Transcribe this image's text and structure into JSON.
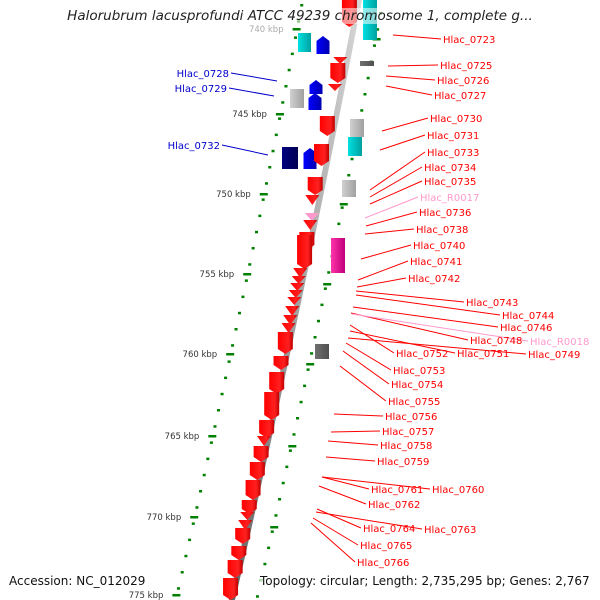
{
  "title": "Halorubrum lacusprofundi ATCC 49239 chromosome 1, complete g...",
  "accession_label": "Accession: NC_012029",
  "topology_label": "Topology: circular; Length: 2,735,295 bp; Genes: 2,767",
  "colors": {
    "forward_gene": "#ff0000",
    "reverse_gene": "#0000ff",
    "rna_gene": "#ff99cc",
    "tick": "#008000",
    "backbone": "#808080"
  },
  "ticks": [
    {
      "label": "740 kbp",
      "kbp": 740
    },
    {
      "label": "745 kbp",
      "kbp": 745
    },
    {
      "label": "750 kbp",
      "kbp": 750
    },
    {
      "label": "755 kbp",
      "kbp": 755
    },
    {
      "label": "760 kbp",
      "kbp": 760
    },
    {
      "label": "765 kbp",
      "kbp": 765
    },
    {
      "label": "770 kbp",
      "kbp": 770
    },
    {
      "label": "775 kbp",
      "kbp": 775
    }
  ],
  "left_labels": [
    {
      "name": "Hlac_0728",
      "color": "#0000cc"
    },
    {
      "name": "Hlac_0729",
      "color": "#0000cc"
    },
    {
      "name": "Hlac_0732",
      "color": "#0000cc"
    }
  ],
  "right_labels": [
    {
      "name": "Hlac_0723",
      "color": "#ff0000"
    },
    {
      "name": "Hlac_0725",
      "color": "#ff0000"
    },
    {
      "name": "Hlac_0726",
      "color": "#ff0000"
    },
    {
      "name": "Hlac_0727",
      "color": "#ff0000"
    },
    {
      "name": "Hlac_0730",
      "color": "#ff0000"
    },
    {
      "name": "Hlac_0731",
      "color": "#ff0000"
    },
    {
      "name": "Hlac_0733",
      "color": "#ff0000"
    },
    {
      "name": "Hlac_0734",
      "color": "#ff0000"
    },
    {
      "name": "Hlac_0735",
      "color": "#ff0000"
    },
    {
      "name": "Hlac_R0017",
      "color": "#ff99cc"
    },
    {
      "name": "Hlac_0736",
      "color": "#ff0000"
    },
    {
      "name": "Hlac_0738",
      "color": "#ff0000"
    },
    {
      "name": "Hlac_0740",
      "color": "#ff0000"
    },
    {
      "name": "Hlac_0741",
      "color": "#ff0000"
    },
    {
      "name": "Hlac_0742",
      "color": "#ff0000"
    },
    {
      "name": "Hlac_0743",
      "color": "#ff0000"
    },
    {
      "name": "Hlac_0744",
      "color": "#ff0000"
    },
    {
      "name": "Hlac_0746",
      "color": "#ff0000"
    },
    {
      "name": "Hlac_0748",
      "color": "#ff0000"
    },
    {
      "name": "Hlac_R0018",
      "color": "#ff99cc"
    },
    {
      "name": "Hlac_0752",
      "color": "#ff0000"
    },
    {
      "name": "Hlac_0751",
      "color": "#ff0000"
    },
    {
      "name": "Hlac_0749",
      "color": "#ff0000"
    },
    {
      "name": "Hlac_0753",
      "color": "#ff0000"
    },
    {
      "name": "Hlac_0754",
      "color": "#ff0000"
    },
    {
      "name": "Hlac_0755",
      "color": "#ff0000"
    },
    {
      "name": "Hlac_0756",
      "color": "#ff0000"
    },
    {
      "name": "Hlac_0757",
      "color": "#ff0000"
    },
    {
      "name": "Hlac_0758",
      "color": "#ff0000"
    },
    {
      "name": "Hlac_0759",
      "color": "#ff0000"
    },
    {
      "name": "Hlac_0761",
      "color": "#ff0000"
    },
    {
      "name": "Hlac_0760",
      "color": "#ff0000"
    },
    {
      "name": "Hlac_0762",
      "color": "#ff0000"
    },
    {
      "name": "Hlac_0764",
      "color": "#ff0000"
    },
    {
      "name": "Hlac_0763",
      "color": "#ff0000"
    },
    {
      "name": "Hlac_0765",
      "color": "#ff0000"
    },
    {
      "name": "Hlac_0766",
      "color": "#ff0000"
    }
  ]
}
